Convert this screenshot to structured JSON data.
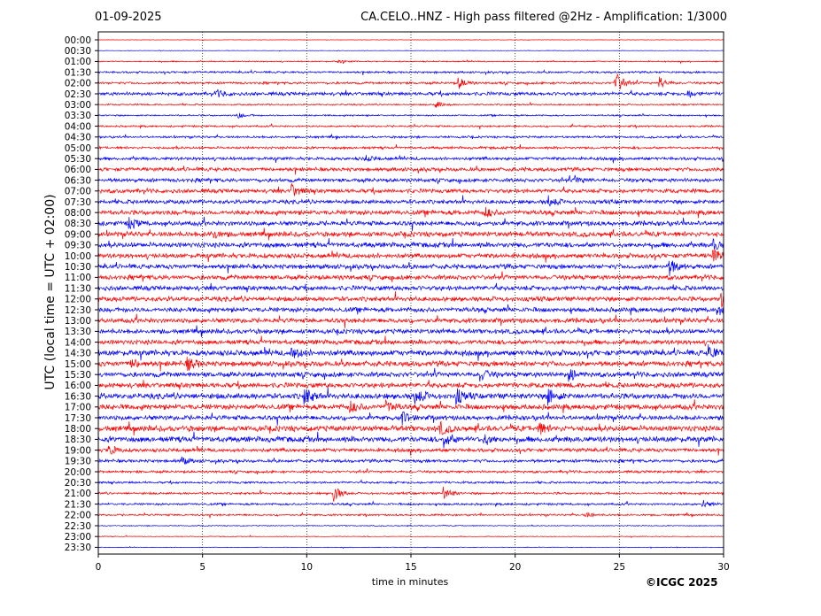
{
  "header": {
    "date": "01-09-2025",
    "title": "CA.CELO..HNZ - High pass filtered @2Hz - Amplification: 1/3000"
  },
  "footer": {
    "credit": "©ICGC 2025"
  },
  "colors": {
    "trace_a": "#ff0000",
    "trace_b": "#0000ff",
    "grid": "#000000",
    "axis": "#000000"
  },
  "chart_data": {
    "type": "line",
    "title": "CA.CELO..HNZ - High pass filtered @2Hz - Amplification: 1/3000",
    "xlabel": "time in minutes",
    "ylabel": "UTC (local time = UTC + 02:00)",
    "xlim": [
      0,
      30
    ],
    "x_ticks": [
      0,
      5,
      10,
      15,
      20,
      25,
      30
    ],
    "x_gridlines": [
      5,
      10,
      15,
      20,
      25
    ],
    "grid": "vertical dotted",
    "y_tick_labels": [
      "00:00",
      "00:30",
      "01:00",
      "01:30",
      "02:00",
      "02:30",
      "03:00",
      "03:30",
      "04:00",
      "04:30",
      "05:00",
      "05:30",
      "06:00",
      "06:30",
      "07:00",
      "07:30",
      "08:00",
      "08:30",
      "09:00",
      "09:30",
      "10:00",
      "10:30",
      "11:00",
      "11:30",
      "12:00",
      "12:30",
      "13:00",
      "13:30",
      "14:00",
      "14:30",
      "15:00",
      "15:30",
      "16:00",
      "16:30",
      "17:00",
      "17:30",
      "18:00",
      "18:30",
      "19:00",
      "19:30",
      "20:00",
      "20:30",
      "21:00",
      "21:30",
      "22:00",
      "22:30",
      "23:00",
      "23:30"
    ],
    "trace_colors": [
      "red",
      "blue"
    ],
    "trace_noise_level": [
      0.3,
      0.3,
      0.8,
      1.3,
      1.5,
      2.2,
      1.0,
      1.0,
      1.2,
      1.4,
      1.6,
      2.0,
      2.4,
      2.4,
      2.6,
      2.6,
      3.0,
      3.0,
      3.2,
      3.2,
      3.0,
      3.0,
      3.0,
      3.0,
      3.0,
      3.0,
      3.0,
      3.0,
      3.0,
      3.6,
      3.4,
      3.2,
      3.2,
      3.6,
      3.4,
      3.0,
      3.6,
      3.6,
      2.4,
      2.0,
      1.6,
      1.4,
      1.4,
      1.4,
      1.2,
      0.6,
      0.5,
      0.4
    ],
    "events": [
      {
        "trace": "01:00",
        "minute": 11.5,
        "amp": 1.5
      },
      {
        "trace": "02:00",
        "minute": 17.3,
        "amp": 6
      },
      {
        "trace": "02:00",
        "minute": 24.8,
        "amp": 14
      },
      {
        "trace": "02:00",
        "minute": 26.9,
        "amp": 7
      },
      {
        "trace": "02:30",
        "minute": 5.7,
        "amp": 4
      },
      {
        "trace": "02:30",
        "minute": 28.2,
        "amp": 5
      },
      {
        "trace": "03:00",
        "minute": 16.2,
        "amp": 4
      },
      {
        "trace": "03:30",
        "minute": 6.7,
        "amp": 3
      },
      {
        "trace": "05:30",
        "minute": 12.8,
        "amp": 3
      },
      {
        "trace": "06:30",
        "minute": 22.9,
        "amp": 4
      },
      {
        "trace": "07:00",
        "minute": 9.3,
        "amp": 8
      },
      {
        "trace": "07:30",
        "minute": 21.6,
        "amp": 6
      },
      {
        "trace": "08:00",
        "minute": 18.6,
        "amp": 5
      },
      {
        "trace": "08:30",
        "minute": 1.5,
        "amp": 6
      },
      {
        "trace": "09:00",
        "minute": 5.4,
        "amp": 6
      },
      {
        "trace": "09:30",
        "minute": 29.5,
        "amp": 6
      },
      {
        "trace": "10:00",
        "minute": 29.5,
        "amp": 7
      },
      {
        "trace": "10:30",
        "minute": 27.4,
        "amp": 9
      },
      {
        "trace": "12:00",
        "minute": 29.9,
        "amp": 8
      },
      {
        "trace": "12:30",
        "minute": 29.7,
        "amp": 5
      },
      {
        "trace": "14:30",
        "minute": 9.3,
        "amp": 7
      },
      {
        "trace": "14:30",
        "minute": 29.3,
        "amp": 8
      },
      {
        "trace": "15:00",
        "minute": 4.3,
        "amp": 7
      },
      {
        "trace": "15:00",
        "minute": 1.6,
        "amp": 5
      },
      {
        "trace": "15:30",
        "minute": 18.3,
        "amp": 7
      },
      {
        "trace": "15:30",
        "minute": 22.6,
        "amp": 7
      },
      {
        "trace": "16:30",
        "minute": 9.9,
        "amp": 9
      },
      {
        "trace": "16:30",
        "minute": 15.2,
        "amp": 9
      },
      {
        "trace": "16:30",
        "minute": 17.2,
        "amp": 8
      },
      {
        "trace": "16:30",
        "minute": 21.6,
        "amp": 10
      },
      {
        "trace": "17:00",
        "minute": 12.1,
        "amp": 6
      },
      {
        "trace": "17:00",
        "minute": 13.8,
        "amp": 6
      },
      {
        "trace": "17:30",
        "minute": 14.6,
        "amp": 6
      },
      {
        "trace": "18:00",
        "minute": 16.4,
        "amp": 7
      },
      {
        "trace": "18:00",
        "minute": 21.1,
        "amp": 7
      },
      {
        "trace": "18:30",
        "minute": 16.6,
        "amp": 8
      },
      {
        "trace": "18:30",
        "minute": 18.5,
        "amp": 6
      },
      {
        "trace": "19:00",
        "minute": 0.5,
        "amp": 6
      },
      {
        "trace": "19:30",
        "minute": 4.0,
        "amp": 4
      },
      {
        "trace": "21:00",
        "minute": 11.3,
        "amp": 9
      },
      {
        "trace": "21:00",
        "minute": 16.5,
        "amp": 9
      },
      {
        "trace": "21:30",
        "minute": 29.0,
        "amp": 4
      },
      {
        "trace": "22:00",
        "minute": 23.4,
        "amp": 3
      }
    ]
  }
}
